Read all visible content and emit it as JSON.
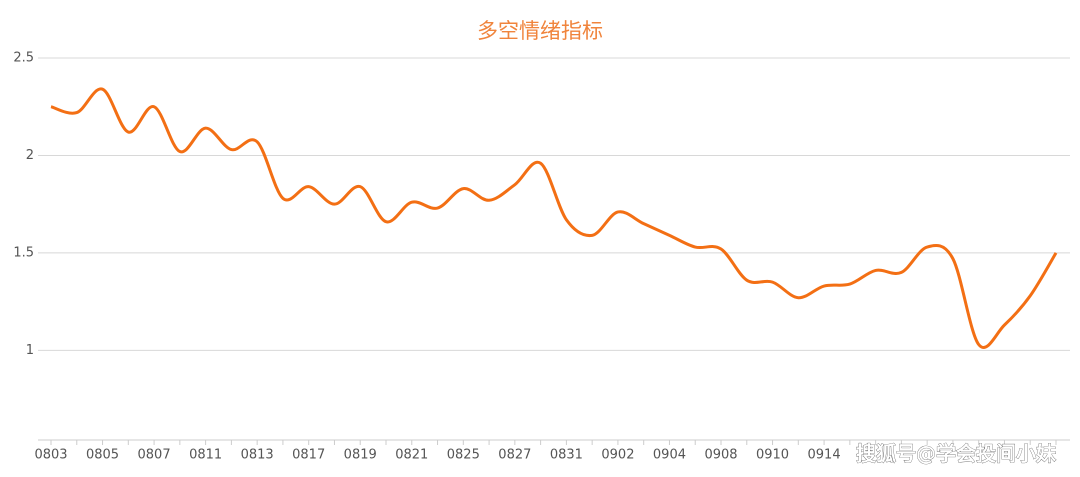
{
  "chart_data": {
    "type": "line",
    "title": "多空情绪指标",
    "categories": [
      "0803",
      null,
      "0805",
      null,
      "0807",
      null,
      "0811",
      null,
      "0813",
      null,
      "0817",
      null,
      "0819",
      null,
      "0821",
      null,
      "0825",
      null,
      "0827",
      null,
      "0831",
      null,
      "0902",
      null,
      "0904",
      null,
      "0908",
      null,
      "0910",
      null,
      "0914",
      null,
      null,
      null,
      null,
      null,
      null,
      null,
      null,
      null
    ],
    "values": [
      2.25,
      2.22,
      2.34,
      2.12,
      2.25,
      2.02,
      2.14,
      2.03,
      2.07,
      1.78,
      1.84,
      1.75,
      1.84,
      1.66,
      1.76,
      1.73,
      1.83,
      1.77,
      1.85,
      1.96,
      1.67,
      1.59,
      1.71,
      1.65,
      1.59,
      1.53,
      1.52,
      1.36,
      1.35,
      1.27,
      1.33,
      1.34,
      1.41,
      1.4,
      1.53,
      1.47,
      1.03,
      1.13,
      1.28,
      1.5
    ],
    "color": "#f36f14",
    "ylim": [
      0.54,
      2.5
    ],
    "yticks": [
      1,
      1.5,
      2,
      2.5
    ],
    "grid": true,
    "watermark": "搜狐号@学会投间小妹"
  }
}
